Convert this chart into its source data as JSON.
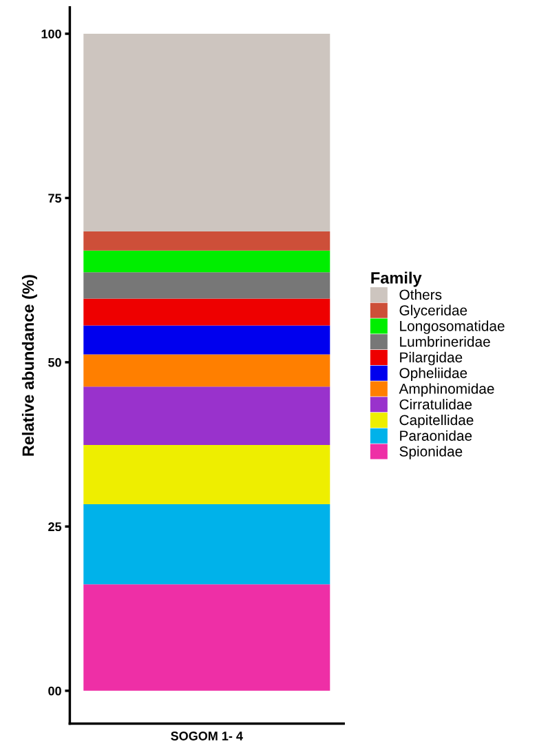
{
  "chart_data": {
    "type": "bar",
    "stacked": true,
    "categories": [
      "SOGOM 1- 4"
    ],
    "ylabel": "Relative abundance (%)",
    "legend_title": "Family",
    "legend": "right",
    "grid": false,
    "ylim": [
      -5,
      104
    ],
    "yticks": [
      {
        "value": 0,
        "label": "00"
      },
      25,
      50,
      75,
      100
    ],
    "series": [
      {
        "name": "Spionidae",
        "color": "#ee2fa6",
        "values": [
          16.2
        ]
      },
      {
        "name": "Paraonidae",
        "color": "#00b2ea",
        "values": [
          12.2
        ]
      },
      {
        "name": "Capitellidae",
        "color": "#eeee00",
        "values": [
          9.0
        ]
      },
      {
        "name": "Cirratulidae",
        "color": "#9932cc",
        "values": [
          8.9
        ]
      },
      {
        "name": "Amphinomidae",
        "color": "#ff7f00",
        "values": [
          4.9
        ]
      },
      {
        "name": "Opheliidae",
        "color": "#0000ee",
        "values": [
          4.4
        ]
      },
      {
        "name": "Pilargidae",
        "color": "#ee0000",
        "values": [
          4.1
        ]
      },
      {
        "name": "Lumbrineridae",
        "color": "#777777",
        "values": [
          4.0
        ]
      },
      {
        "name": "Longosomatidae",
        "color": "#00ee00",
        "values": [
          3.3
        ]
      },
      {
        "name": "Glyceridae",
        "color": "#cd4f39",
        "values": [
          2.9
        ]
      },
      {
        "name": "Others",
        "color": "#cdc5bf",
        "values": [
          30.1
        ]
      }
    ]
  }
}
